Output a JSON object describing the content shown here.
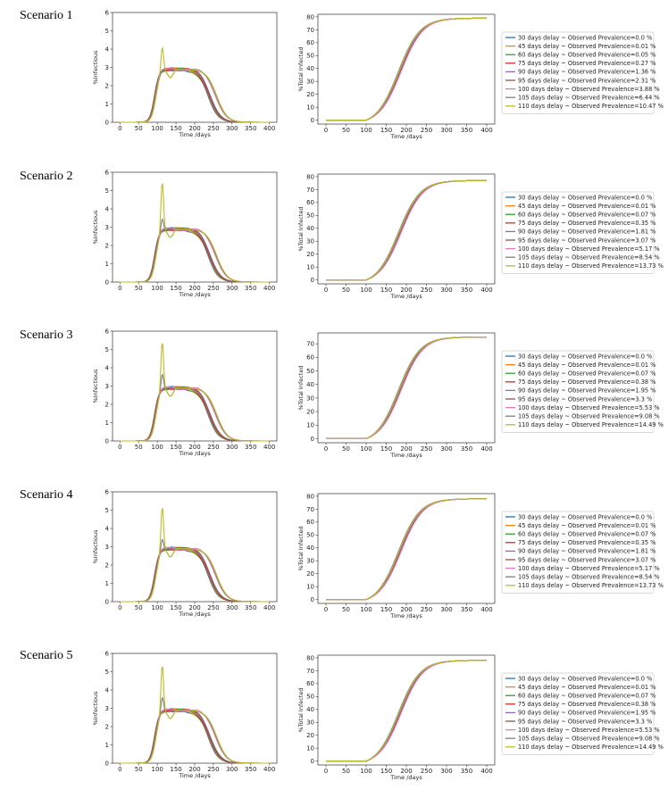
{
  "colors": [
    "#1f77b4",
    "#ff7f0e",
    "#2ca02c",
    "#d62728",
    "#9467bd",
    "#8c564b",
    "#e377c2",
    "#7f7f7f",
    "#bcbd22"
  ],
  "delays": [
    30,
    45,
    60,
    75,
    90,
    95,
    100,
    105,
    110
  ],
  "chart_data": [
    {
      "scenario": "Scenario 1",
      "type": "line",
      "left": {
        "xlabel": "Time /days",
        "ylabel": "%Infectious",
        "xlim": [
          -20,
          420
        ],
        "ylim": [
          0,
          6
        ],
        "xticks": [
          0,
          50,
          100,
          150,
          200,
          250,
          300,
          350,
          400
        ],
        "yticks": [
          0,
          1,
          2,
          3,
          4,
          5,
          6
        ]
      },
      "right": {
        "xlabel": "Time /days",
        "ylabel": "%Total Infected",
        "xlim": [
          -20,
          420
        ],
        "ylim": [
          -3,
          82
        ],
        "xticks": [
          0,
          50,
          100,
          150,
          200,
          250,
          300,
          350,
          400
        ],
        "yticks": [
          0,
          10,
          20,
          30,
          40,
          50,
          60,
          70,
          80
        ],
        "final": 79
      },
      "legend": [
        "30 days delay ~ Observed Prevalence=0.0 %",
        "45 days delay ~ Observed Prevalence=0.01 %",
        "60 days delay ~ Observed Prevalence=0.05 %",
        "75 days delay ~ Observed Prevalence=0.27 %",
        "90 days delay ~ Observed Prevalence=1.36 %",
        "95 days delay ~ Observed Prevalence=2.31 %",
        "100 days delay ~ Observed Prevalence=3.88 %",
        "105 days delay ~ Observed Prevalence=6.44 %",
        "110 days delay ~ Observed Prevalence=10.47 %"
      ],
      "peaks": [
        2.9,
        2.9,
        2.9,
        2.9,
        2.9,
        2.95,
        2.9,
        3.0,
        4.35
      ]
    },
    {
      "scenario": "Scenario 2",
      "type": "line",
      "left": {
        "xlabel": "Time /days",
        "ylabel": "%Infectious",
        "xlim": [
          -20,
          420
        ],
        "ylim": [
          0,
          6
        ],
        "xticks": [
          0,
          50,
          100,
          150,
          200,
          250,
          300,
          350,
          400
        ],
        "yticks": [
          0,
          1,
          2,
          3,
          4,
          5,
          6
        ]
      },
      "right": {
        "xlabel": "Time /days",
        "ylabel": "%Total Infected",
        "xlim": [
          -20,
          420
        ],
        "ylim": [
          -3,
          82
        ],
        "xticks": [
          0,
          50,
          100,
          150,
          200,
          250,
          300,
          350,
          400
        ],
        "yticks": [
          0,
          10,
          20,
          30,
          40,
          50,
          60,
          70,
          80
        ],
        "final": 77
      },
      "legend": [
        "30 days delay ~ Observed Prevalence=0.0 %",
        "45 days delay ~ Observed Prevalence=0.01 %",
        "60 days delay ~ Observed Prevalence=0.07 %",
        "75 days delay ~ Observed Prevalence=0.35 %",
        "90 days delay ~ Observed Prevalence=1.81 %",
        "95 days delay ~ Observed Prevalence=3.07 %",
        "100 days delay ~ Observed Prevalence=5.17 %",
        "105 days delay ~ Observed Prevalence=8.54 %",
        "110 days delay ~ Observed Prevalence=13.73 %"
      ],
      "peaks": [
        2.9,
        2.9,
        2.9,
        2.9,
        2.9,
        2.95,
        2.9,
        3.65,
        5.8
      ]
    },
    {
      "scenario": "Scenario 3",
      "type": "line",
      "left": {
        "xlabel": "Time /days",
        "ylabel": "%Infectious",
        "xlim": [
          -20,
          420
        ],
        "ylim": [
          0,
          6
        ],
        "xticks": [
          0,
          50,
          100,
          150,
          200,
          250,
          300,
          350,
          400
        ],
        "yticks": [
          0,
          1,
          2,
          3,
          4,
          5,
          6
        ]
      },
      "right": {
        "xlabel": "Time /days",
        "ylabel": "%Total Infected",
        "xlim": [
          -20,
          420
        ],
        "ylim": [
          -3,
          78
        ],
        "xticks": [
          0,
          50,
          100,
          150,
          200,
          250,
          300,
          350,
          400
        ],
        "yticks": [
          0,
          10,
          20,
          30,
          40,
          50,
          60,
          70
        ],
        "final": 75
      },
      "legend": [
        "30 days delay ~ Observed Prevalence=0.0 %",
        "45 days delay ~ Observed Prevalence=0.01 %",
        "60 days delay ~ Observed Prevalence=0.07 %",
        "75 days delay ~ Observed Prevalence=0.38 %",
        "90 days delay ~ Observed Prevalence=1.95 %",
        "95 days delay ~ Observed Prevalence=3.3 %",
        "100 days delay ~ Observed Prevalence=5.53 %",
        "105 days delay ~ Observed Prevalence=9.08 %",
        "110 days delay ~ Observed Prevalence=14.49 %"
      ],
      "peaks": [
        2.9,
        2.9,
        2.9,
        2.9,
        2.9,
        2.95,
        2.9,
        3.85,
        5.75
      ]
    },
    {
      "scenario": "Scenario 4",
      "type": "line",
      "left": {
        "xlabel": "Time /days",
        "ylabel": "%Infectious",
        "xlim": [
          -20,
          420
        ],
        "ylim": [
          0,
          6
        ],
        "xticks": [
          0,
          50,
          100,
          150,
          200,
          250,
          300,
          350,
          400
        ],
        "yticks": [
          0,
          1,
          2,
          3,
          4,
          5,
          6
        ]
      },
      "right": {
        "xlabel": "Time /days",
        "ylabel": "%Total Infected",
        "xlim": [
          -20,
          420
        ],
        "ylim": [
          -3,
          82
        ],
        "xticks": [
          0,
          50,
          100,
          150,
          200,
          250,
          300,
          350,
          400
        ],
        "yticks": [
          0,
          10,
          20,
          30,
          40,
          50,
          60,
          70,
          80
        ],
        "final": 78
      },
      "legend": [
        "30 days delay ~ Observed Prevalence=0.0 %",
        "45 days delay ~ Observed Prevalence=0.01 %",
        "60 days delay ~ Observed Prevalence=0.07 %",
        "75 days delay ~ Observed Prevalence=0.35 %",
        "90 days delay ~ Observed Prevalence=1.81 %",
        "95 days delay ~ Observed Prevalence=3.07 %",
        "100 days delay ~ Observed Prevalence=5.17 %",
        "105 days delay ~ Observed Prevalence=8.54 %",
        "110 days delay ~ Observed Prevalence=13.73 %"
      ],
      "peaks": [
        2.9,
        2.9,
        2.9,
        2.9,
        2.9,
        2.95,
        2.9,
        3.6,
        5.5
      ]
    },
    {
      "scenario": "Scenario 5",
      "type": "line",
      "left": {
        "xlabel": "Time /days",
        "ylabel": "%Infectious",
        "xlim": [
          -20,
          420
        ],
        "ylim": [
          0,
          6
        ],
        "xticks": [
          0,
          50,
          100,
          150,
          200,
          250,
          300,
          350,
          400
        ],
        "yticks": [
          0,
          1,
          2,
          3,
          4,
          5,
          6
        ]
      },
      "right": {
        "xlabel": "Time /days",
        "ylabel": "%Total Infected",
        "xlim": [
          -20,
          420
        ],
        "ylim": [
          -3,
          82
        ],
        "xticks": [
          0,
          50,
          100,
          150,
          200,
          250,
          300,
          350,
          400
        ],
        "yticks": [
          0,
          10,
          20,
          30,
          40,
          50,
          60,
          70,
          80
        ],
        "final": 78
      },
      "legend": [
        "30 days delay ~ Observed Prevalence=0.0 %",
        "45 days delay ~ Observed Prevalence=0.01 %",
        "60 days delay ~ Observed Prevalence=0.07 %",
        "75 days delay ~ Observed Prevalence=0.38 %",
        "90 days delay ~ Observed Prevalence=1.95 %",
        "95 days delay ~ Observed Prevalence=3.3 %",
        "100 days delay ~ Observed Prevalence=5.53 %",
        "105 days delay ~ Observed Prevalence=9.08 %",
        "110 days delay ~ Observed Prevalence=14.49 %"
      ],
      "peaks": [
        2.9,
        2.9,
        2.9,
        2.9,
        2.9,
        2.95,
        2.9,
        3.8,
        5.7
      ]
    }
  ]
}
